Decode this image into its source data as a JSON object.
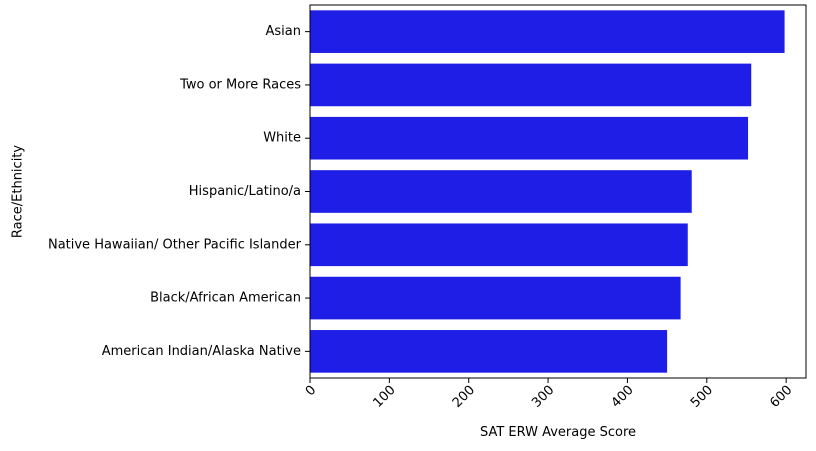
{
  "chart_data": {
    "type": "bar",
    "orientation": "horizontal",
    "categories": [
      "Asian",
      "Two or More Races",
      "White",
      "Hispanic/Latino/a",
      "Native Hawaiian/ Other Pacific Islander",
      "Black/African American",
      "American Indian/Alaska Native"
    ],
    "values": [
      598,
      556,
      552,
      481,
      476,
      467,
      450
    ],
    "xlabel": "SAT ERW Average Score",
    "ylabel": "Race/Ethnicity",
    "xlim": [
      0,
      625
    ],
    "xticks": [
      "0",
      "100",
      "200",
      "300",
      "400",
      "500",
      "600"
    ],
    "grid": false,
    "bar_color": "#1e1ee6"
  }
}
